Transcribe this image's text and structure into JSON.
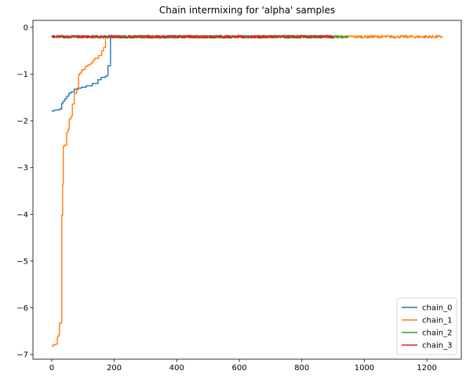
{
  "chart_data": {
    "type": "line",
    "title": "Chain intermixing for 'alpha' samples",
    "xlabel": "",
    "ylabel": "",
    "xlim": [
      -60,
      1310
    ],
    "ylim": [
      -7.1,
      0.15
    ],
    "xticks": [
      0,
      200,
      400,
      600,
      800,
      1000,
      1200
    ],
    "yticks": [
      0,
      -1,
      -2,
      -3,
      -4,
      -5,
      -6,
      -7
    ],
    "grid": false,
    "legend_position": "lower-right",
    "series": [
      {
        "name": "chain_0",
        "color": "#1f77b4",
        "steps": [
          [
            0,
            -1.79
          ],
          [
            8,
            -1.77
          ],
          [
            18,
            -1.76
          ],
          [
            28,
            -1.74
          ],
          [
            32,
            -1.63
          ],
          [
            36,
            -1.58
          ],
          [
            42,
            -1.53
          ],
          [
            48,
            -1.47
          ],
          [
            55,
            -1.41
          ],
          [
            62,
            -1.38
          ],
          [
            72,
            -1.32
          ],
          [
            82,
            -1.3
          ],
          [
            95,
            -1.28
          ],
          [
            110,
            -1.25
          ],
          [
            130,
            -1.2
          ],
          [
            148,
            -1.12
          ],
          [
            158,
            -1.07
          ],
          [
            172,
            -1.04
          ],
          [
            180,
            -0.82
          ],
          [
            188,
            -0.2
          ],
          [
            1250,
            -0.2
          ]
        ],
        "noise_from": 190,
        "noise_to": 900
      },
      {
        "name": "chain_1",
        "color": "#ff7f0e",
        "steps": [
          [
            0,
            -6.82
          ],
          [
            5,
            -6.79
          ],
          [
            12,
            -6.78
          ],
          [
            18,
            -6.62
          ],
          [
            22,
            -6.58
          ],
          [
            25,
            -6.33
          ],
          [
            30,
            -6.32
          ],
          [
            32,
            -4.02
          ],
          [
            35,
            -3.36
          ],
          [
            37,
            -2.55
          ],
          [
            40,
            -2.52
          ],
          [
            48,
            -2.25
          ],
          [
            52,
            -2.18
          ],
          [
            56,
            -1.96
          ],
          [
            62,
            -1.9
          ],
          [
            66,
            -1.64
          ],
          [
            72,
            -1.41
          ],
          [
            80,
            -1.33
          ],
          [
            86,
            -1.01
          ],
          [
            90,
            -0.98
          ],
          [
            95,
            -0.92
          ],
          [
            100,
            -0.9
          ],
          [
            108,
            -0.83
          ],
          [
            116,
            -0.8
          ],
          [
            125,
            -0.76
          ],
          [
            132,
            -0.7
          ],
          [
            138,
            -0.66
          ],
          [
            150,
            -0.6
          ],
          [
            160,
            -0.5
          ],
          [
            166,
            -0.43
          ],
          [
            172,
            -0.22
          ],
          [
            176,
            -0.2
          ],
          [
            1250,
            -0.2
          ]
        ],
        "noise_from": 178,
        "noise_to": 1250
      },
      {
        "name": "chain_2",
        "color": "#2ca02c",
        "steps": [
          [
            0,
            -0.2
          ],
          [
            950,
            -0.2
          ]
        ],
        "noise_from": 0,
        "noise_to": 950
      },
      {
        "name": "chain_3",
        "color": "#d62728",
        "steps": [
          [
            0,
            -0.2
          ],
          [
            900,
            -0.2
          ]
        ],
        "noise_from": 0,
        "noise_to": 900
      }
    ]
  }
}
